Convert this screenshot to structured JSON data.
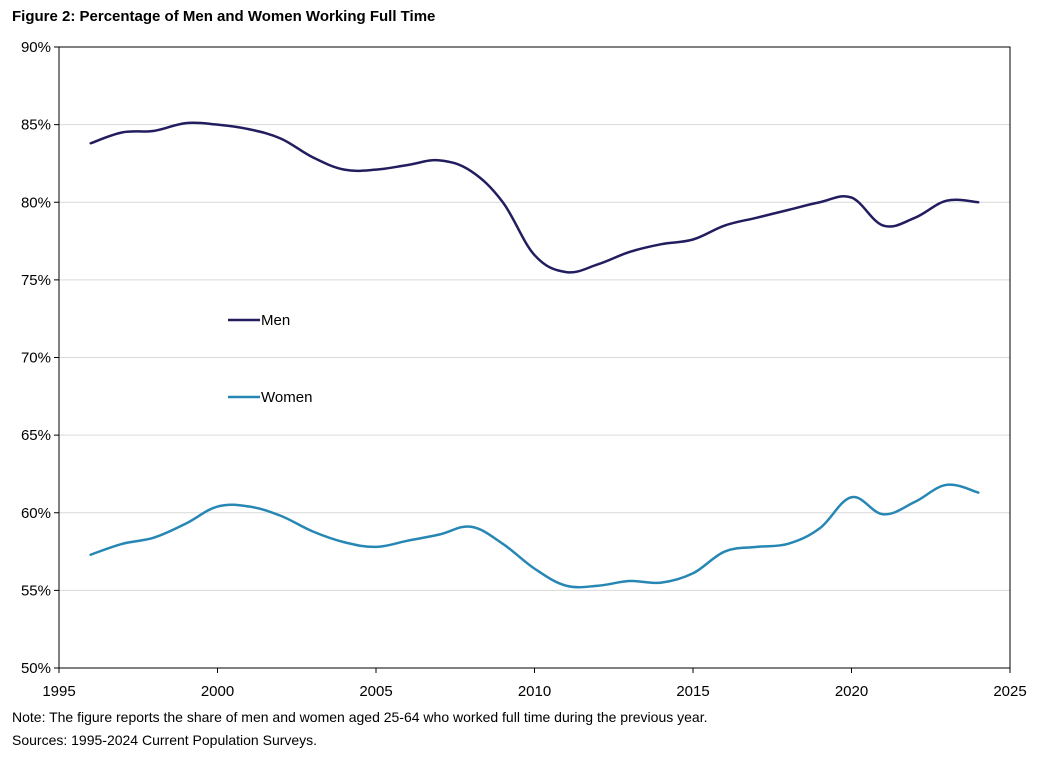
{
  "title": "Figure 2: Percentage of Men and Women Working Full Time",
  "note": "Note: The figure reports the share of men and women aged 25-64 who worked full time during the previous year.",
  "sources": "Sources: 1995-2024  Current Population Surveys.",
  "colors": {
    "men": "#221d5e",
    "women": "#2787b4",
    "grid": "#d9d9d9",
    "axis": "#000000"
  },
  "chart_data": {
    "type": "line",
    "title": "Figure 2: Percentage of Men and Women Working Full Time",
    "xlabel": "",
    "ylabel": "",
    "xlim": [
      1995,
      2025
    ],
    "ylim": [
      50,
      90
    ],
    "x_ticks": [
      1995,
      2000,
      2005,
      2010,
      2015,
      2020,
      2025
    ],
    "y_ticks": [
      50,
      55,
      60,
      65,
      70,
      75,
      80,
      85,
      90
    ],
    "x_tick_labels": [
      "1995",
      "2000",
      "2005",
      "2010",
      "2015",
      "2020",
      "2025"
    ],
    "y_tick_labels": [
      "50%",
      "55%",
      "60%",
      "65%",
      "70%",
      "75%",
      "80%",
      "85%",
      "90%"
    ],
    "grid": true,
    "legend_position": "middle-left",
    "x": [
      1996,
      1997,
      1998,
      1999,
      2000,
      2001,
      2002,
      2003,
      2004,
      2005,
      2006,
      2007,
      2008,
      2009,
      2010,
      2011,
      2012,
      2013,
      2014,
      2015,
      2016,
      2017,
      2018,
      2019,
      2020,
      2021,
      2022,
      2023,
      2024
    ],
    "series": [
      {
        "name": "Men",
        "color": "#221d5e",
        "values": [
          83.8,
          84.5,
          84.6,
          85.1,
          85.0,
          84.7,
          84.1,
          82.9,
          82.1,
          82.1,
          82.4,
          82.7,
          82.0,
          80.0,
          76.6,
          75.5,
          76.0,
          76.8,
          77.3,
          77.6,
          78.5,
          79.0,
          79.5,
          80.0,
          80.3,
          78.5,
          79.0,
          80.1,
          80.0
        ]
      },
      {
        "name": "Women",
        "color": "#2787b4",
        "values": [
          57.3,
          58.0,
          58.4,
          59.3,
          60.4,
          60.4,
          59.8,
          58.8,
          58.1,
          57.8,
          58.2,
          58.6,
          59.1,
          58.0,
          56.4,
          55.3,
          55.3,
          55.6,
          55.5,
          56.1,
          57.5,
          57.8,
          58.0,
          59.0,
          61.0,
          59.9,
          60.7,
          61.8,
          61.3
        ]
      }
    ]
  }
}
